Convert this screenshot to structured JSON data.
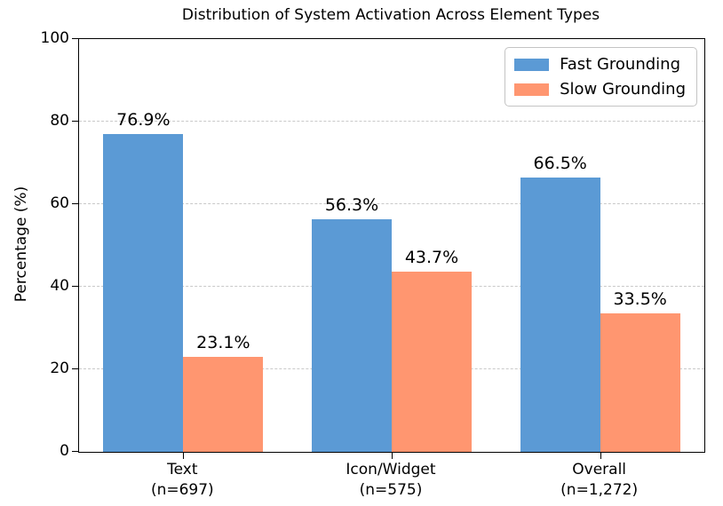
{
  "chart_data": {
    "type": "bar",
    "title": "Distribution of System Activation Across Element Types",
    "ylabel": "Percentage (%)",
    "ylim": [
      0,
      100
    ],
    "yticks": [
      0,
      20,
      40,
      60,
      80,
      100
    ],
    "ytick_labels": [
      "0",
      "20",
      "40",
      "60",
      "80",
      "100"
    ],
    "grid": "horizontal dashed gridlines at yticks",
    "legend_position": "upper right",
    "groups": [
      {
        "label": "Text",
        "count": "(n=697)"
      },
      {
        "label": "Icon/Widget",
        "count": "(n=575)"
      },
      {
        "label": "Overall",
        "count": "(n=1,272)"
      }
    ],
    "categories": [
      "Text (n=697)",
      "Icon/Widget (n=575)",
      "Overall (n=1,272)"
    ],
    "series": [
      {
        "name": "Fast Grounding",
        "color": "#5B9AD5",
        "values": [
          76.9,
          56.3,
          66.5
        ],
        "value_labels": [
          "76.9%",
          "56.3%",
          "66.5%"
        ]
      },
      {
        "name": "Slow Grounding",
        "color": "#FF9670",
        "values": [
          23.1,
          43.7,
          33.5
        ],
        "value_labels": [
          "23.1%",
          "43.7%",
          "33.5%"
        ]
      }
    ],
    "colors": {
      "fast_grounding": "#5B9AD5",
      "slow_grounding": "#FF9670",
      "gridline": "#c9c9c9",
      "axis": "#000000",
      "background": "#ffffff"
    }
  }
}
